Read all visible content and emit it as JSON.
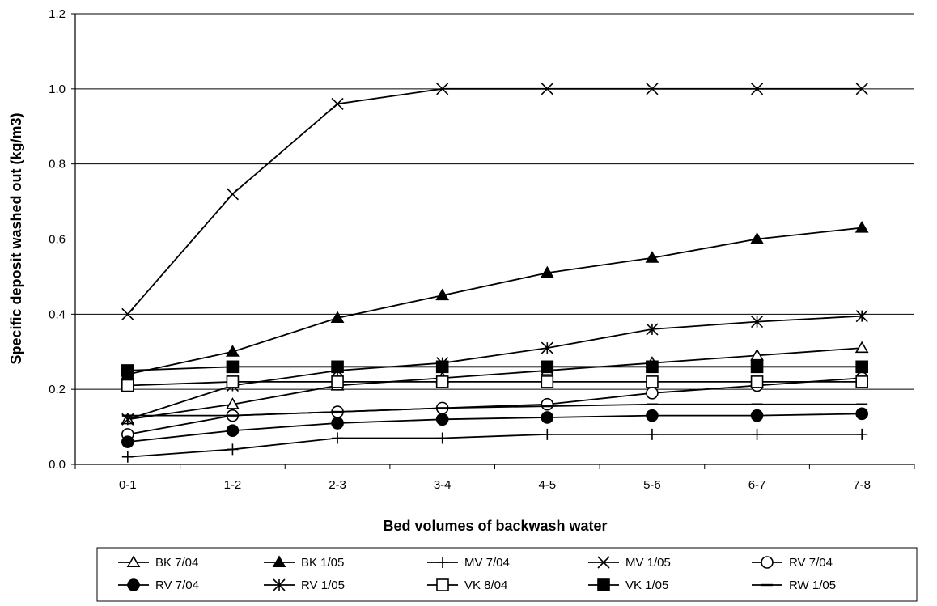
{
  "chart_data": {
    "type": "line",
    "title": "",
    "xlabel": "Bed volumes of backwash water",
    "ylabel": "Specific deposit washed out (kg/m3)",
    "categories": [
      "0-1",
      "1-2",
      "2-3",
      "3-4",
      "4-5",
      "5-6",
      "6-7",
      "7-8"
    ],
    "ylim": [
      0,
      1.2
    ],
    "yticks": [
      "0.0",
      "0.2",
      "0.4",
      "0.6",
      "0.8",
      "1.0",
      "1.2"
    ],
    "grid": "horizontal",
    "legend_position": "bottom",
    "series": [
      {
        "name": "BK 7/04",
        "marker": "triangle-open",
        "values": [
          0.12,
          0.16,
          0.21,
          0.23,
          0.25,
          0.27,
          0.29,
          0.31
        ]
      },
      {
        "name": "BK 1/05",
        "marker": "triangle-filled",
        "values": [
          0.24,
          0.3,
          0.39,
          0.45,
          0.51,
          0.55,
          0.6,
          0.63
        ]
      },
      {
        "name": "MV 7/04",
        "marker": "plus",
        "values": [
          0.02,
          0.04,
          0.07,
          0.07,
          0.08,
          0.08,
          0.08,
          0.08
        ]
      },
      {
        "name": "MV 1/05",
        "marker": "x",
        "values": [
          0.4,
          0.72,
          0.96,
          1.0,
          1.0,
          1.0,
          1.0,
          1.0
        ]
      },
      {
        "name": "RV 7/04",
        "marker": "circle-open",
        "values": [
          0.08,
          0.13,
          0.14,
          0.15,
          0.16,
          0.19,
          0.21,
          0.23
        ]
      },
      {
        "name": "RV 7/04",
        "marker": "circle-filled",
        "values": [
          0.06,
          0.09,
          0.11,
          0.12,
          0.125,
          0.13,
          0.13,
          0.135
        ]
      },
      {
        "name": "RV 1/05",
        "marker": "asterisk",
        "values": [
          0.12,
          0.21,
          0.25,
          0.27,
          0.31,
          0.36,
          0.38,
          0.395
        ]
      },
      {
        "name": "VK 8/04",
        "marker": "square-open",
        "values": [
          0.21,
          0.22,
          0.22,
          0.22,
          0.22,
          0.22,
          0.22,
          0.22
        ]
      },
      {
        "name": "VK 1/05",
        "marker": "square-filled",
        "values": [
          0.25,
          0.26,
          0.26,
          0.26,
          0.26,
          0.26,
          0.26,
          0.26
        ]
      },
      {
        "name": "RW 1/05",
        "marker": "dash",
        "values": [
          0.13,
          0.13,
          0.14,
          0.15,
          0.155,
          0.16,
          0.16,
          0.16
        ]
      }
    ]
  }
}
